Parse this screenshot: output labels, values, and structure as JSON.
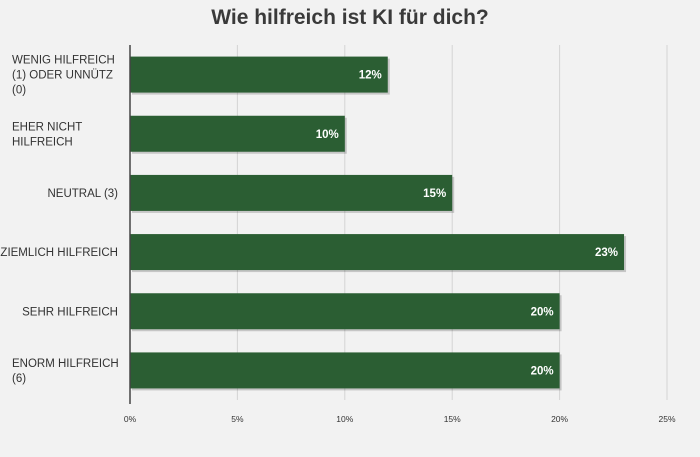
{
  "chart_data": {
    "type": "bar",
    "orientation": "horizontal",
    "title": "Wie hilfreich ist KI für dich?",
    "categories": [
      "WENIG HILFREICH (1) ODER UNNÜTZ (0)",
      "EHER NICHT HILFREICH",
      "NEUTRAL (3)",
      "ZIEMLICH HILFREICH",
      "SEHR HILFREICH",
      "ENORM HILFREICH (6)"
    ],
    "values": [
      12,
      10,
      15,
      23,
      20,
      20
    ],
    "data_labels": [
      "12%",
      "10%",
      "15%",
      "23%",
      "20%",
      "20%"
    ],
    "xlim": [
      0,
      25
    ],
    "xticks": [
      0,
      5,
      10,
      15,
      20,
      25
    ],
    "xtick_labels": [
      "0%",
      "5%",
      "10%",
      "15%",
      "20%",
      "25%"
    ],
    "xlabel": "",
    "ylabel": "",
    "grid": "vertical",
    "bar_color": "#2b5e33"
  }
}
